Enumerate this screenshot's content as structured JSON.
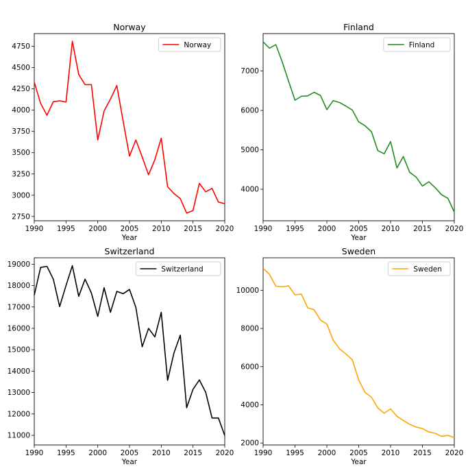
{
  "chart_data": [
    {
      "type": "line",
      "title": "Norway",
      "xlabel": "Year",
      "ylabel": "",
      "legend_position": "top-right",
      "grid": false,
      "xlim": [
        1990,
        2020
      ],
      "ylim": [
        2700,
        4900
      ],
      "xticks": [
        1990,
        1995,
        2000,
        2005,
        2010,
        2015,
        2020
      ],
      "yticks": [
        2750,
        3000,
        3250,
        3500,
        3750,
        4000,
        4250,
        4500,
        4750
      ],
      "series": [
        {
          "name": "Norway",
          "color": "#ff0000",
          "x": [
            1990,
            1991,
            1992,
            1993,
            1994,
            1995,
            1996,
            1997,
            1998,
            1999,
            2000,
            2001,
            2002,
            2003,
            2004,
            2005,
            2006,
            2007,
            2008,
            2009,
            2010,
            2011,
            2012,
            2013,
            2014,
            2015,
            2016,
            2017,
            2018,
            2019,
            2020
          ],
          "values": [
            4330,
            4080,
            3940,
            4100,
            4110,
            4095,
            4810,
            4420,
            4300,
            4300,
            3650,
            3990,
            4130,
            4290,
            3870,
            3460,
            3650,
            3450,
            3240,
            3420,
            3670,
            3100,
            3020,
            2960,
            2790,
            2820,
            3140,
            3040,
            3080,
            2920,
            2900
          ]
        }
      ]
    },
    {
      "type": "line",
      "title": "Finland",
      "xlabel": "Year",
      "ylabel": "",
      "legend_position": "top-right",
      "grid": false,
      "xlim": [
        1990,
        2020
      ],
      "ylim": [
        3200,
        7950
      ],
      "xticks": [
        1990,
        1995,
        2000,
        2005,
        2010,
        2015,
        2020
      ],
      "yticks": [
        4000,
        5000,
        6000,
        7000
      ],
      "series": [
        {
          "name": "Finland",
          "color": "#228b22",
          "x": [
            1990,
            1991,
            1992,
            1993,
            1994,
            1995,
            1996,
            1997,
            1998,
            1999,
            2000,
            2001,
            2002,
            2003,
            2004,
            2005,
            2006,
            2007,
            2008,
            2009,
            2010,
            2011,
            2012,
            2013,
            2014,
            2015,
            2016,
            2017,
            2018,
            2019,
            2020
          ],
          "values": [
            7740,
            7580,
            7670,
            7230,
            6740,
            6260,
            6360,
            6370,
            6460,
            6380,
            6020,
            6250,
            6200,
            6110,
            6010,
            5710,
            5610,
            5460,
            4980,
            4900,
            5210,
            4540,
            4830,
            4430,
            4310,
            4080,
            4190,
            4040,
            3860,
            3770,
            3420
          ]
        }
      ]
    },
    {
      "type": "line",
      "title": "Switzerland",
      "xlabel": "Year",
      "ylabel": "",
      "legend_position": "top-right",
      "grid": false,
      "xlim": [
        1990,
        2020
      ],
      "ylim": [
        10550,
        19300
      ],
      "xticks": [
        1990,
        1995,
        2000,
        2005,
        2010,
        2015,
        2020
      ],
      "yticks": [
        11000,
        12000,
        13000,
        14000,
        15000,
        16000,
        17000,
        18000,
        19000
      ],
      "series": [
        {
          "name": "Switzerland",
          "color": "#000000",
          "x": [
            1990,
            1991,
            1992,
            1993,
            1994,
            1995,
            1996,
            1997,
            1998,
            1999,
            2000,
            2001,
            2002,
            2003,
            2004,
            2005,
            2006,
            2007,
            2008,
            2009,
            2010,
            2011,
            2012,
            2013,
            2014,
            2015,
            2016,
            2017,
            2018,
            2019,
            2020
          ],
          "values": [
            17550,
            18850,
            18900,
            18300,
            17020,
            18000,
            18930,
            17500,
            18300,
            17650,
            16560,
            17900,
            16750,
            17730,
            17620,
            17820,
            16980,
            15140,
            16000,
            15600,
            16750,
            13570,
            14850,
            15680,
            12290,
            13150,
            13590,
            13010,
            11810,
            11810,
            10990
          ]
        }
      ]
    },
    {
      "type": "line",
      "title": "Sweden",
      "xlabel": "Year",
      "ylabel": "",
      "legend_position": "top-right",
      "grid": false,
      "xlim": [
        1990,
        2020
      ],
      "ylim": [
        1900,
        11700
      ],
      "xticks": [
        1990,
        1995,
        2000,
        2005,
        2010,
        2015,
        2020
      ],
      "yticks": [
        2000,
        4000,
        6000,
        8000,
        10000
      ],
      "series": [
        {
          "name": "Sweden",
          "color": "#ffa500",
          "x": [
            1990,
            1991,
            1992,
            1993,
            1994,
            1995,
            1996,
            1997,
            1998,
            1999,
            2000,
            2001,
            2002,
            2003,
            2004,
            2005,
            2006,
            2007,
            2008,
            2009,
            2010,
            2011,
            2012,
            2013,
            2014,
            2015,
            2016,
            2017,
            2018,
            2019,
            2020
          ],
          "values": [
            11150,
            10830,
            10210,
            10180,
            10230,
            9760,
            9800,
            9080,
            8980,
            8440,
            8230,
            7380,
            6930,
            6660,
            6360,
            5300,
            4650,
            4400,
            3840,
            3560,
            3790,
            3400,
            3180,
            2980,
            2840,
            2760,
            2580,
            2510,
            2350,
            2400,
            2290
          ]
        }
      ]
    }
  ]
}
